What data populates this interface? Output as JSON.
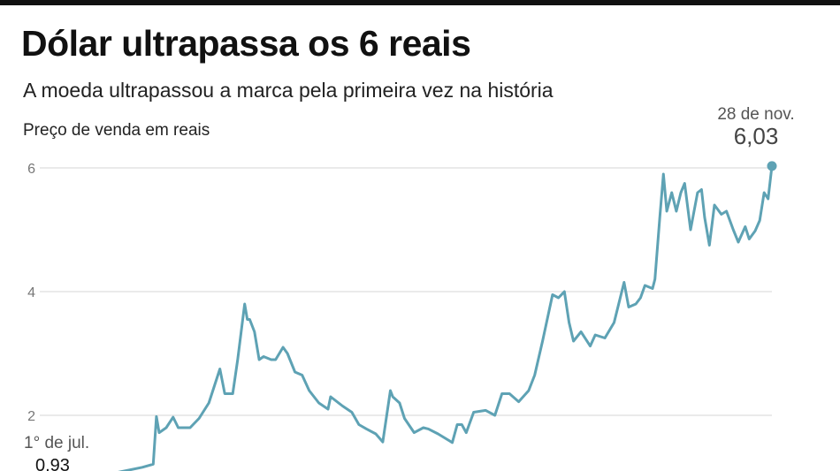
{
  "header": {
    "title": "Dólar ultrapassa os 6 reais",
    "subtitle": "A moeda ultrapassou a marca pela primeira vez na história"
  },
  "chart_data": {
    "type": "line",
    "title": "Dólar ultrapassa os 6 reais",
    "subtitle": "A moeda ultrapassou a marca pela primeira vez na história",
    "ylabel": "Preço de venda em reais",
    "xlabel": "",
    "yticks": [
      2,
      4,
      6
    ],
    "ytick_labels": [
      "2",
      "4",
      "6"
    ],
    "grid": "horizontal",
    "line_color": "#5ea2b4",
    "annotations": [
      {
        "label": "1° de jul.",
        "value_label": "0.93",
        "date": "1994-07-01",
        "value": 0.93
      },
      {
        "label": "28 de nov.",
        "value_label": "6,03",
        "date": "2024-11-28",
        "value": 6.03
      }
    ],
    "series": [
      {
        "x": [
          "1994-07-01",
          "1994-10-15",
          "1995-07-01",
          "1996-07-01",
          "1997-07-01",
          "1998-07-01",
          "1998-12-15",
          "1999-02-01",
          "1999-03-15",
          "1999-07-01",
          "1999-10-15",
          "2000-01-01",
          "2000-07-01",
          "2000-11-15",
          "2001-04-15",
          "2001-10-01",
          "2001-12-15",
          "2002-04-15",
          "2002-07-01",
          "2002-10-15",
          "2002-11-25",
          "2003-01-01",
          "2003-03-15",
          "2003-05-25",
          "2003-08-01",
          "2003-11-25",
          "2004-02-01",
          "2004-05-25",
          "2004-08-01",
          "2004-11-25",
          "2005-03-15",
          "2005-07-01",
          "2005-11-25",
          "2006-04-15",
          "2006-05-25",
          "2006-11-25",
          "2007-04-15",
          "2007-08-01",
          "2007-11-25",
          "2008-04-15",
          "2008-08-01",
          "2008-11-25",
          "2009-01-01",
          "2009-04-15",
          "2009-07-01",
          "2009-11-25",
          "2010-04-15",
          "2010-07-01",
          "2010-11-25",
          "2011-07-01",
          "2011-09-15",
          "2011-11-25",
          "2012-02-01",
          "2012-05-25",
          "2012-11-25",
          "2013-04-15",
          "2013-08-01",
          "2013-11-25",
          "2014-04-15",
          "2014-09-15",
          "2014-12-15",
          "2015-04-15",
          "2015-09-15",
          "2015-12-15",
          "2016-03-15",
          "2016-05-25",
          "2016-08-01",
          "2016-11-25",
          "2017-04-15",
          "2017-07-01",
          "2017-11-25",
          "2018-04-15",
          "2018-09-15",
          "2018-11-25",
          "2019-03-15",
          "2019-05-25",
          "2019-08-01",
          "2019-11-25",
          "2020-01-01",
          "2020-03-15",
          "2020-05-10",
          "2020-07-01",
          "2020-09-15",
          "2020-11-25",
          "2021-02-01",
          "2021-04-01",
          "2021-07-01",
          "2021-10-15",
          "2021-12-15",
          "2022-02-01",
          "2022-04-15",
          "2022-07-01",
          "2022-10-15",
          "2023-01-01",
          "2023-04-15",
          "2023-07-01",
          "2023-10-15",
          "2023-12-15",
          "2024-03-15",
          "2024-05-25",
          "2024-08-01",
          "2024-10-01",
          "2024-11-28"
        ],
        "values": [
          0.93,
          0.84,
          0.92,
          1.0,
          1.08,
          1.16,
          1.21,
          1.98,
          1.72,
          1.8,
          1.97,
          1.8,
          1.8,
          1.95,
          2.2,
          2.75,
          2.35,
          2.35,
          2.9,
          3.8,
          3.55,
          3.55,
          3.35,
          2.9,
          2.95,
          2.9,
          2.9,
          3.1,
          3.0,
          2.7,
          2.65,
          2.4,
          2.2,
          2.1,
          2.3,
          2.15,
          2.05,
          1.85,
          1.78,
          1.7,
          1.57,
          2.4,
          2.3,
          2.2,
          1.95,
          1.72,
          1.8,
          1.78,
          1.7,
          1.56,
          1.85,
          1.85,
          1.72,
          2.05,
          2.08,
          2.0,
          2.35,
          2.35,
          2.22,
          2.4,
          2.65,
          3.2,
          3.95,
          3.9,
          4.0,
          3.5,
          3.2,
          3.35,
          3.12,
          3.3,
          3.25,
          3.5,
          4.15,
          3.75,
          3.8,
          3.9,
          4.1,
          4.05,
          4.2,
          5.2,
          5.9,
          5.3,
          5.6,
          5.3,
          5.6,
          5.75,
          5.0,
          5.6,
          5.65,
          5.2,
          4.75,
          5.4,
          5.25,
          5.3,
          5.0,
          4.8,
          5.05,
          4.85,
          4.98,
          5.15,
          5.6,
          5.5,
          6.03
        ]
      }
    ]
  }
}
